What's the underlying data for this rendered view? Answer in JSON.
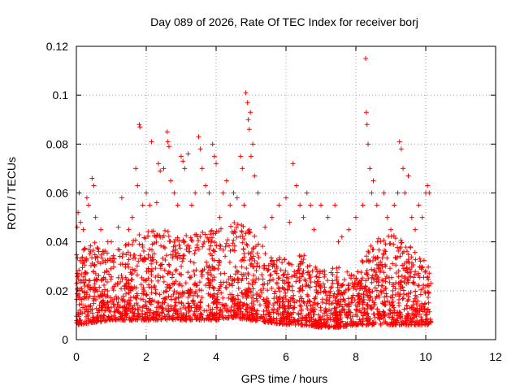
{
  "chart_data": {
    "type": "scatter",
    "title": "Day 089 of 2026, Rate Of TEC Index for receiver borj",
    "xlabel": "GPS time / hours",
    "ylabel": "ROTI / TECUs",
    "xlim": [
      0,
      12
    ],
    "ylim": [
      0,
      0.12
    ],
    "x_ticks": [
      "0",
      "2",
      "4",
      "6",
      "8",
      "10",
      "12"
    ],
    "y_ticks": [
      "0",
      "0.02",
      "0.04",
      "0.06",
      "0.08",
      "0.1",
      "0.12"
    ],
    "grid": true,
    "marker": "plus",
    "series": [
      {
        "color": "#ff0000",
        "points": [
          [
            0.02,
            0.046
          ],
          [
            0.05,
            0.052
          ],
          [
            0.08,
            0.06
          ],
          [
            0.12,
            0.048
          ],
          [
            0.2,
            0.045
          ],
          [
            0.3,
            0.058
          ],
          [
            0.35,
            0.055
          ],
          [
            0.45,
            0.066
          ],
          [
            0.5,
            0.063
          ],
          [
            0.55,
            0.05
          ],
          [
            0.7,
            0.045
          ],
          [
            0.9,
            0.04
          ],
          [
            1.0,
            0.04
          ],
          [
            1.2,
            0.046
          ],
          [
            1.3,
            0.058
          ],
          [
            1.5,
            0.045
          ],
          [
            1.6,
            0.05
          ],
          [
            1.7,
            0.07
          ],
          [
            1.75,
            0.063
          ],
          [
            1.8,
            0.088
          ],
          [
            1.82,
            0.087
          ],
          [
            1.9,
            0.055
          ],
          [
            2.0,
            0.06
          ],
          [
            2.1,
            0.055
          ],
          [
            2.15,
            0.081
          ],
          [
            2.3,
            0.056
          ],
          [
            2.35,
            0.072
          ],
          [
            2.4,
            0.069
          ],
          [
            2.5,
            0.07
          ],
          [
            2.6,
            0.085
          ],
          [
            2.62,
            0.081
          ],
          [
            2.65,
            0.079
          ],
          [
            2.7,
            0.065
          ],
          [
            2.8,
            0.06
          ],
          [
            2.9,
            0.055
          ],
          [
            3.0,
            0.075
          ],
          [
            3.05,
            0.073
          ],
          [
            3.1,
            0.07
          ],
          [
            3.2,
            0.076
          ],
          [
            3.3,
            0.055
          ],
          [
            3.4,
            0.06
          ],
          [
            3.5,
            0.083
          ],
          [
            3.55,
            0.078
          ],
          [
            3.6,
            0.07
          ],
          [
            3.7,
            0.063
          ],
          [
            3.8,
            0.06
          ],
          [
            3.9,
            0.08
          ],
          [
            3.95,
            0.075
          ],
          [
            4.0,
            0.072
          ],
          [
            4.1,
            0.05
          ],
          [
            4.2,
            0.06
          ],
          [
            4.3,
            0.065
          ],
          [
            4.4,
            0.055
          ],
          [
            4.5,
            0.06
          ],
          [
            4.6,
            0.058
          ],
          [
            4.7,
            0.075
          ],
          [
            4.75,
            0.07
          ],
          [
            4.8,
            0.055
          ],
          [
            4.85,
            0.101
          ],
          [
            4.9,
            0.097
          ],
          [
            4.92,
            0.09
          ],
          [
            4.95,
            0.086
          ],
          [
            4.98,
            0.093
          ],
          [
            5.0,
            0.075
          ],
          [
            5.05,
            0.08
          ],
          [
            5.1,
            0.067
          ],
          [
            5.2,
            0.06
          ],
          [
            5.4,
            0.046
          ],
          [
            5.6,
            0.05
          ],
          [
            5.8,
            0.055
          ],
          [
            6.0,
            0.058
          ],
          [
            6.1,
            0.048
          ],
          [
            6.2,
            0.072
          ],
          [
            6.3,
            0.063
          ],
          [
            6.4,
            0.055
          ],
          [
            6.5,
            0.05
          ],
          [
            6.6,
            0.06
          ],
          [
            6.7,
            0.055
          ],
          [
            6.8,
            0.045
          ],
          [
            7.0,
            0.055
          ],
          [
            7.2,
            0.05
          ],
          [
            7.4,
            0.055
          ],
          [
            7.5,
            0.04
          ],
          [
            7.6,
            0.042
          ],
          [
            7.8,
            0.045
          ],
          [
            8.0,
            0.05
          ],
          [
            8.2,
            0.055
          ],
          [
            8.28,
            0.115
          ],
          [
            8.3,
            0.093
          ],
          [
            8.32,
            0.088
          ],
          [
            8.35,
            0.08
          ],
          [
            8.4,
            0.07
          ],
          [
            8.45,
            0.06
          ],
          [
            8.5,
            0.065
          ],
          [
            8.6,
            0.055
          ],
          [
            8.8,
            0.06
          ],
          [
            8.9,
            0.05
          ],
          [
            9.0,
            0.045
          ],
          [
            9.1,
            0.055
          ],
          [
            9.2,
            0.06
          ],
          [
            9.25,
            0.081
          ],
          [
            9.3,
            0.078
          ],
          [
            9.35,
            0.07
          ],
          [
            9.4,
            0.06
          ],
          [
            9.5,
            0.067
          ],
          [
            9.6,
            0.05
          ],
          [
            9.7,
            0.045
          ],
          [
            9.8,
            0.055
          ],
          [
            9.9,
            0.05
          ],
          [
            10.0,
            0.06
          ],
          [
            10.05,
            0.063
          ],
          [
            10.1,
            0.06
          ]
        ],
        "envelope": {
          "x": [
            0,
            0.5,
            1,
            1.5,
            2,
            2.5,
            3,
            3.5,
            4,
            4.5,
            5,
            5.5,
            6,
            6.5,
            7,
            7.5,
            8,
            8.5,
            9,
            9.5,
            10,
            10.15
          ],
          "baseline": [
            0.006,
            0.007,
            0.008,
            0.008,
            0.008,
            0.008,
            0.008,
            0.008,
            0.008,
            0.009,
            0.008,
            0.007,
            0.006,
            0.006,
            0.005,
            0.005,
            0.006,
            0.006,
            0.006,
            0.006,
            0.006,
            0.006
          ],
          "typical_high": [
            0.035,
            0.04,
            0.035,
            0.04,
            0.045,
            0.045,
            0.042,
            0.045,
            0.045,
            0.05,
            0.045,
            0.035,
            0.033,
            0.035,
            0.028,
            0.03,
            0.028,
            0.04,
            0.045,
            0.04,
            0.035,
            0.03
          ]
        },
        "count": 2600
      }
    ]
  }
}
